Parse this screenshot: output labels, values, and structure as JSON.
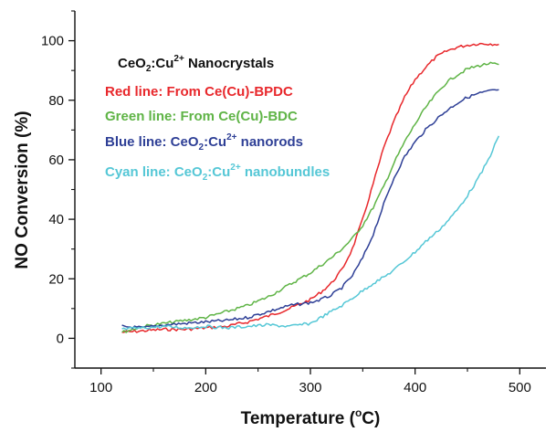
{
  "chart_data": {
    "type": "line",
    "xlabel": {
      "main": "Temperature (",
      "sup": "o",
      "tail": "C)"
    },
    "ylabel": "NO Conversion (%)",
    "xlim": [
      75,
      525
    ],
    "ylim": [
      -10,
      110
    ],
    "x_ticks": [
      100,
      200,
      300,
      400,
      500
    ],
    "y_ticks": [
      0,
      20,
      40,
      60,
      80,
      100
    ],
    "x_tick_labels": [
      "100",
      "200",
      "300",
      "400",
      "500"
    ],
    "y_tick_labels": [
      "0",
      "20",
      "40",
      "60",
      "80",
      "100"
    ],
    "grid": false,
    "legend_placement": "top-left",
    "legend_title": {
      "a": "CeO",
      "sub": "2",
      "b": ":Cu",
      "sup": "2+",
      "c": " Nanocrystals"
    },
    "legend_entries": [
      {
        "key": "red",
        "text": "Red line: From Ce(Cu)-BPDC",
        "color": "#e8282c"
      },
      {
        "key": "green",
        "text": "Green line: From Ce(Cu)-BDC",
        "color": "#5fb446"
      },
      {
        "key": "blue",
        "parts": {
          "a": "Blue line: CeO",
          "sub": "2",
          "b": ":Cu",
          "sup": "2+",
          "c": " nanorods"
        },
        "color": "#2e3f96"
      },
      {
        "key": "cyan",
        "parts": {
          "a": "Cyan line: CeO",
          "sub": "2",
          "b": ":Cu",
          "sup": "2+",
          "c": " nanobundles"
        },
        "color": "#55c7d6"
      }
    ],
    "series": [
      {
        "key": "red",
        "color": "#e8282c",
        "x": [
          120,
          140,
          160,
          180,
          200,
          220,
          240,
          260,
          280,
          300,
          310,
          320,
          330,
          340,
          350,
          360,
          370,
          380,
          390,
          400,
          410,
          420,
          430,
          440,
          450,
          460,
          470,
          480
        ],
        "y": [
          2,
          2.5,
          3,
          3,
          3.5,
          4,
          5.5,
          7.5,
          10,
          13,
          15.5,
          18.5,
          23,
          30,
          40,
          52,
          64,
          73,
          81,
          87,
          91,
          94.5,
          96.5,
          97.8,
          98.5,
          99,
          99,
          98.8
        ]
      },
      {
        "key": "green",
        "color": "#5fb446",
        "x": [
          120,
          140,
          160,
          180,
          200,
          220,
          240,
          260,
          280,
          300,
          310,
          320,
          330,
          340,
          350,
          360,
          370,
          380,
          390,
          400,
          410,
          420,
          430,
          440,
          450,
          460,
          470,
          480
        ],
        "y": [
          2,
          4,
          5,
          6,
          7,
          9,
          11,
          14,
          18,
          22,
          24.5,
          27,
          30,
          33.5,
          38,
          44,
          51,
          59,
          66,
          72,
          77.5,
          82,
          86,
          88.5,
          90.5,
          91.5,
          92.3,
          92
        ]
      },
      {
        "key": "blue",
        "color": "#2e3f96",
        "x": [
          120,
          140,
          160,
          180,
          200,
          220,
          240,
          260,
          280,
          300,
          310,
          320,
          330,
          340,
          350,
          360,
          370,
          380,
          390,
          400,
          410,
          420,
          430,
          440,
          450,
          460,
          470,
          480
        ],
        "y": [
          4,
          3.5,
          4.5,
          5,
          5.5,
          6,
          7,
          9,
          11,
          12,
          13,
          14.5,
          17,
          21,
          27,
          35,
          45,
          54,
          61,
          66,
          70,
          73.5,
          76.5,
          79,
          81,
          82.2,
          83,
          83.5
        ]
      },
      {
        "key": "cyan",
        "color": "#55c7d6",
        "x": [
          120,
          140,
          160,
          180,
          200,
          220,
          240,
          260,
          280,
          300,
          310,
          320,
          330,
          340,
          350,
          360,
          370,
          380,
          390,
          400,
          410,
          420,
          430,
          440,
          450,
          460,
          470,
          480
        ],
        "y": [
          3,
          3.5,
          4,
          3.5,
          4,
          3.5,
          4,
          4.5,
          4,
          5,
          7,
          9,
          11,
          13.5,
          16,
          18.5,
          20.5,
          23,
          26,
          29,
          32.5,
          35.5,
          39,
          43,
          48,
          53.5,
          60,
          68
        ]
      }
    ]
  }
}
